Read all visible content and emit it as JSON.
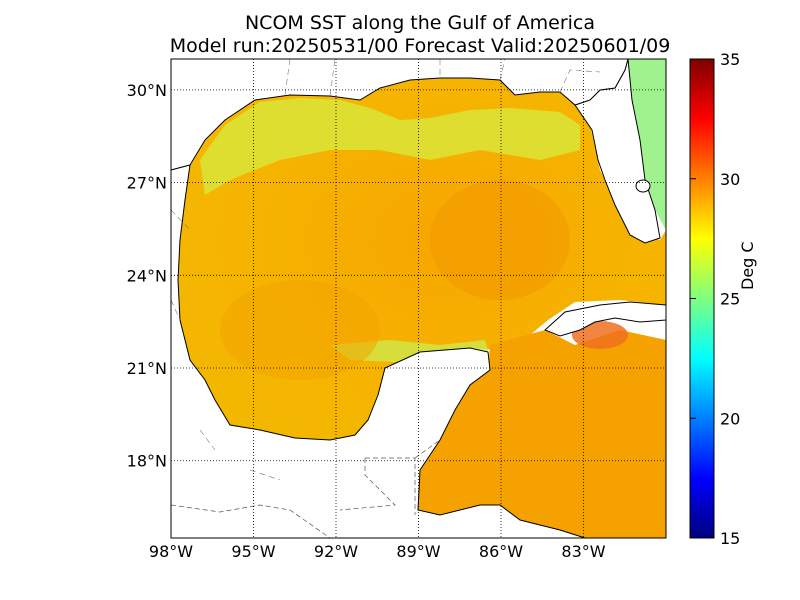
{
  "title": {
    "line1": "NCOM SST along the Gulf of America",
    "line2": "Model run:20250531/00 Forecast Valid:20250601/09"
  },
  "map": {
    "lon_range": [
      -98,
      -80
    ],
    "lat_range": [
      15.5,
      31
    ],
    "x_ticks": [
      {
        "lon": -98,
        "label": "98°W"
      },
      {
        "lon": -95,
        "label": "95°W"
      },
      {
        "lon": -92,
        "label": "92°W"
      },
      {
        "lon": -89,
        "label": "89°W"
      },
      {
        "lon": -86,
        "label": "86°W"
      },
      {
        "lon": -83,
        "label": "83°W"
      }
    ],
    "y_ticks": [
      {
        "lat": 30,
        "label": "30°N"
      },
      {
        "lat": 27,
        "label": "27°N"
      },
      {
        "lat": 24,
        "label": "24°N"
      },
      {
        "lat": 21,
        "label": "21°N"
      },
      {
        "lat": 18,
        "label": "18°N"
      }
    ],
    "grid": true,
    "gridline_style": "dotted"
  },
  "colorbar": {
    "label": "Deg C",
    "min": 15,
    "max": 35,
    "ticks": [
      "35",
      "30",
      "25",
      "20",
      "15"
    ],
    "colormap": "jet"
  },
  "colors": {
    "land": "#ffffff",
    "sea_warm": "#f7b800",
    "sea_hot": "#f58a00",
    "sea_cool": "#d8f040"
  }
}
